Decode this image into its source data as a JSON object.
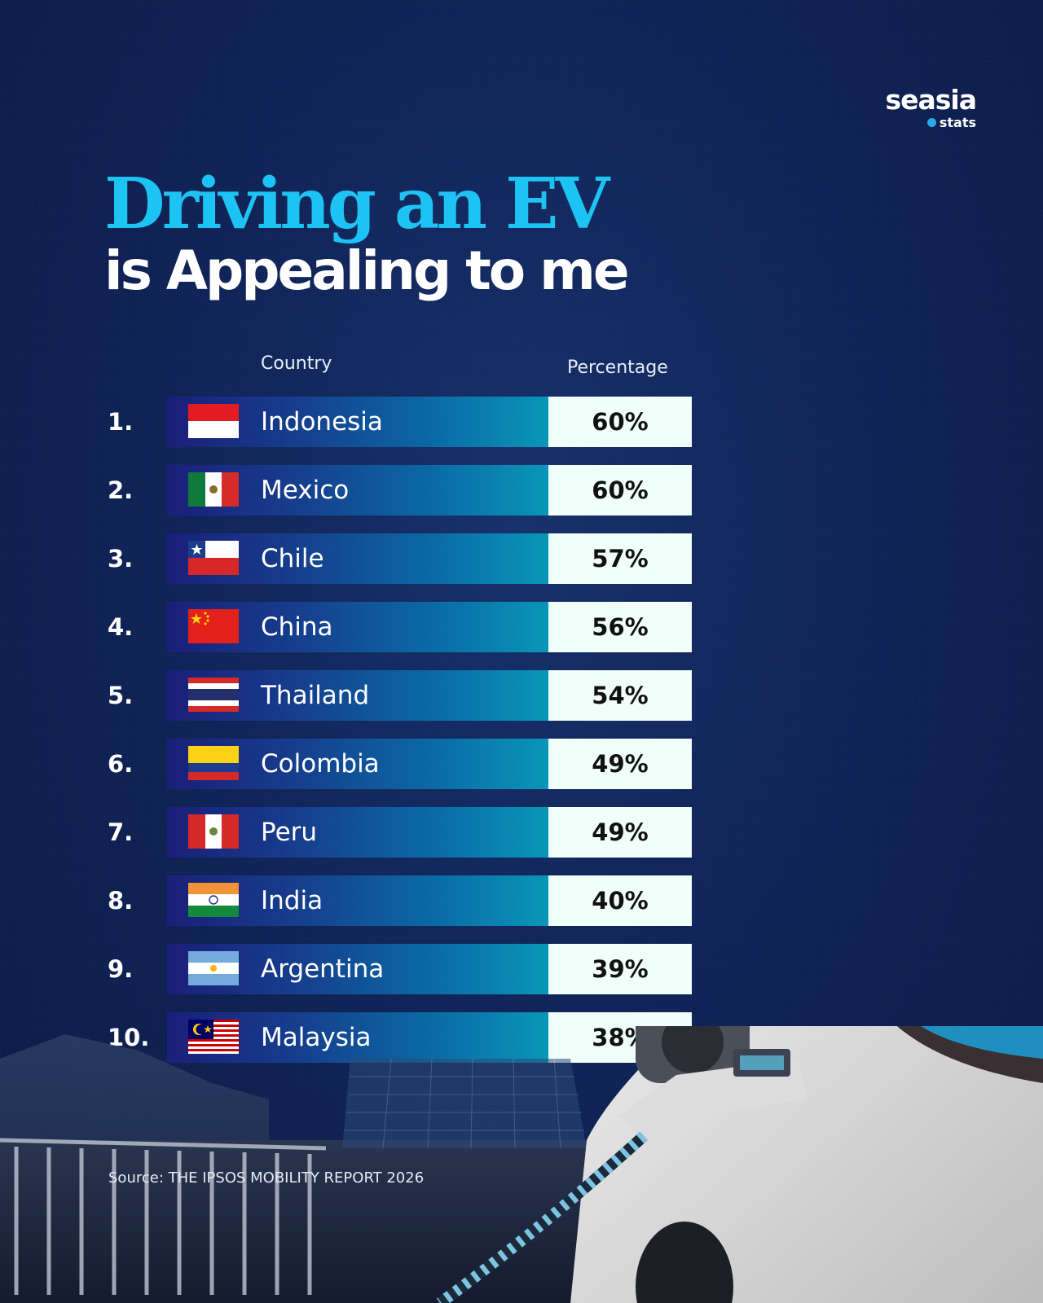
{
  "logo": {
    "main": "seasia",
    "sub": "stats"
  },
  "title": {
    "line1": "Driving an EV",
    "line2": "is Appealing to me"
  },
  "headers": {
    "country": "Country",
    "percentage": "Percentage"
  },
  "source": "Source: THE IPSOS MOBILITY REPORT 2026",
  "colors": {
    "title_accent": "#1cc3f3",
    "background": "#0f2357",
    "bar_start": "#1a1f78",
    "bar_end": "#0996b8",
    "pct_box": "#f0fffa"
  },
  "chart_data": {
    "type": "table",
    "title": "Driving an EV is Appealing to me",
    "columns": [
      "Country",
      "Percentage"
    ],
    "rows": [
      {
        "rank": "1.",
        "country": "Indonesia",
        "flag": "indonesia-flag",
        "percentage": "60%",
        "value": 60
      },
      {
        "rank": "2.",
        "country": "Mexico",
        "flag": "mexico-flag",
        "percentage": "60%",
        "value": 60
      },
      {
        "rank": "3.",
        "country": "Chile",
        "flag": "chile-flag",
        "percentage": "57%",
        "value": 57
      },
      {
        "rank": "4.",
        "country": "China",
        "flag": "china-flag",
        "percentage": "56%",
        "value": 56
      },
      {
        "rank": "5.",
        "country": "Thailand",
        "flag": "thailand-flag",
        "percentage": "54%",
        "value": 54
      },
      {
        "rank": "6.",
        "country": "Colombia",
        "flag": "colombia-flag",
        "percentage": "49%",
        "value": 49
      },
      {
        "rank": "7.",
        "country": "Peru",
        "flag": "peru-flag",
        "percentage": "49%",
        "value": 49
      },
      {
        "rank": "8.",
        "country": "India",
        "flag": "india-flag",
        "percentage": "40%",
        "value": 40
      },
      {
        "rank": "9.",
        "country": "Argentina",
        "flag": "argentina-flag",
        "percentage": "39%",
        "value": 39
      },
      {
        "rank": "10.",
        "country": "Malaysia",
        "flag": "malaysia-flag",
        "percentage": "38%",
        "value": 38
      }
    ]
  }
}
